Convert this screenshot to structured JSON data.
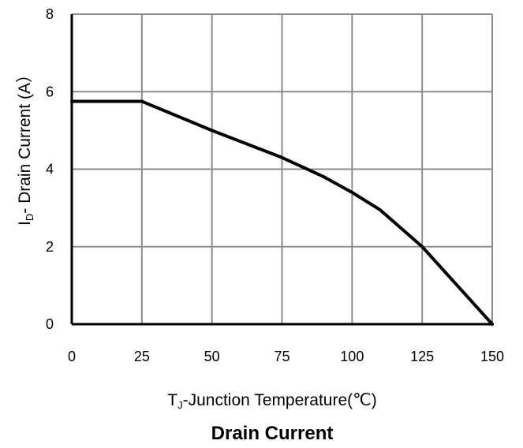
{
  "chart_data": {
    "type": "line",
    "title": "Drain Current",
    "xlabel": {
      "main": "T",
      "sub": "J",
      "rest": "-Junction Temperature(℃)"
    },
    "ylabel": {
      "main": "I",
      "sub": "D",
      "rest": "- Drain Current (A）"
    },
    "xlim": [
      0,
      150
    ],
    "ylim": [
      0,
      8
    ],
    "xticks": [
      0,
      25,
      50,
      75,
      100,
      125,
      150
    ],
    "yticks": [
      0,
      2,
      4,
      6,
      8
    ],
    "x_tick_labels": [
      "0",
      "25",
      "50",
      "75",
      "100",
      "125",
      "150"
    ],
    "y_tick_labels": [
      "0",
      "2",
      "4",
      "6",
      "8"
    ],
    "grid": true,
    "series": [
      {
        "x": [
          0,
          25,
          50,
          75,
          90,
          100,
          110,
          125,
          150
        ],
        "y": [
          5.75,
          5.75,
          5.0,
          4.3,
          3.8,
          3.4,
          2.95,
          2.0,
          0.0
        ],
        "color": "#000000"
      }
    ]
  }
}
